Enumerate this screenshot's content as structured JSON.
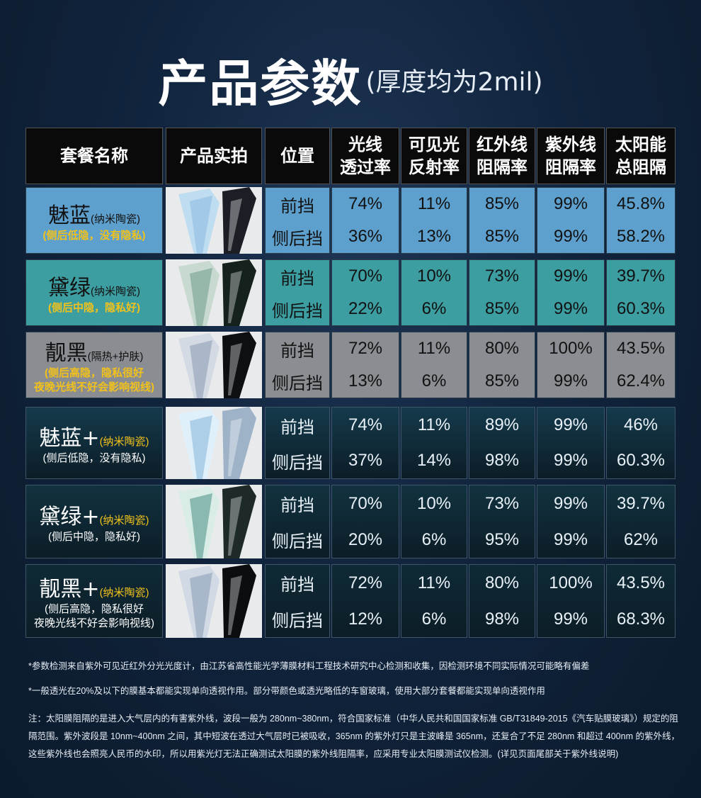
{
  "title": {
    "main": "产品参数",
    "sub": "(厚度均为2mil)"
  },
  "headers": [
    [
      "套餐名称"
    ],
    [
      "产品实拍"
    ],
    [
      "位置"
    ],
    [
      "光线",
      "透过率"
    ],
    [
      "可见光",
      "反射率"
    ],
    [
      "红外线",
      "阻隔率"
    ],
    [
      "紫外线",
      "阻隔率"
    ],
    [
      "太阳能",
      "总阻隔"
    ]
  ],
  "positions": [
    "前挡",
    "侧后挡"
  ],
  "rows": [
    {
      "name": "魅蓝",
      "sub": "(纳米陶瓷)",
      "note": [
        "(侧后低隐，没有隐私)"
      ],
      "front": [
        "74%",
        "11%",
        "85%",
        "99%",
        "45.8%"
      ],
      "rear": [
        "36%",
        "13%",
        "85%",
        "99%",
        "58.2%"
      ],
      "bg": "#5ea0cd"
    },
    {
      "name": "黛绿",
      "sub": "(纳米陶瓷)",
      "note": [
        "(侧后中隐，隐私好)"
      ],
      "front": [
        "70%",
        "10%",
        "73%",
        "99%",
        "39.7%"
      ],
      "rear": [
        "22%",
        "6%",
        "85%",
        "99%",
        "60.3%"
      ],
      "bg": "#3d9ea2"
    },
    {
      "name": "靓黑",
      "sub": "(隔热+护肤)",
      "note": [
        "(侧后高隐，隐私很好",
        "夜晚光线不好会影响视线)"
      ],
      "front": [
        "72%",
        "11%",
        "80%",
        "100%",
        "43.5%"
      ],
      "rear": [
        "13%",
        "6%",
        "85%",
        "99%",
        "62.4%"
      ],
      "bg": "#8a8d91"
    },
    {
      "name": "魅蓝+",
      "sub": "(纳米陶瓷)",
      "note": [
        "(侧后低隐，没有隐私)"
      ],
      "front": [
        "74%",
        "11%",
        "89%",
        "99%",
        "46%"
      ],
      "rear": [
        "37%",
        "14%",
        "98%",
        "99%",
        "60.3%"
      ],
      "bg": "#143a4c"
    },
    {
      "name": "黛绿+",
      "sub": "(纳米陶瓷)",
      "note": [
        "(侧后中隐，隐私好)"
      ],
      "front": [
        "70%",
        "10%",
        "73%",
        "99%",
        "39.7%"
      ],
      "rear": [
        "20%",
        "6%",
        "95%",
        "99%",
        "62%"
      ],
      "bg": "#11323f"
    },
    {
      "name": "靓黑+",
      "sub": "(纳米陶瓷)",
      "note": [
        "(侧后高隐，隐私很好",
        "夜晚光线不好会影响视线)"
      ],
      "front": [
        "72%",
        "11%",
        "80%",
        "100%",
        "43.5%"
      ],
      "rear": [
        "12%",
        "6%",
        "98%",
        "99%",
        "68.3%"
      ],
      "bg": "#0f2a36"
    }
  ],
  "footnotes": [
    "*参数检测来自紫外可见近红外分光光度计，由江苏省高性能光学薄膜材料工程技术研究中心检测和收集，因检测环境不同实际情况可能略有偏差",
    "*一般透光在20%及以下的膜基本都能实现单向透视作用。部分带颜色或透光略低的车窗玻璃，使用大部分套餐都能实现单向透视作用",
    "注：太阳膜阻隔的是进入大气层内的有害紫外线，波段一般为 280nm~380nm，符合国家标准（中华人民共和国国家标准 GB/T31849-2015《汽车贴膜玻璃》）规定的阻隔范围。紫外波段是 10nm~400nm 之间，其中短波在透过大气层时已被吸收，365nm 的紫外灯只是主波峰是 365nm，还复合了不足 280nm 和超过 400nm 的紫外线，这些紫外线也会照亮人民币的水印，所以用紫光灯无法正确测试太阳膜的紫外线阻隔率，应采用专业太阳膜测试仪检测。(详见页面尾部关于紫外线说明)"
  ]
}
